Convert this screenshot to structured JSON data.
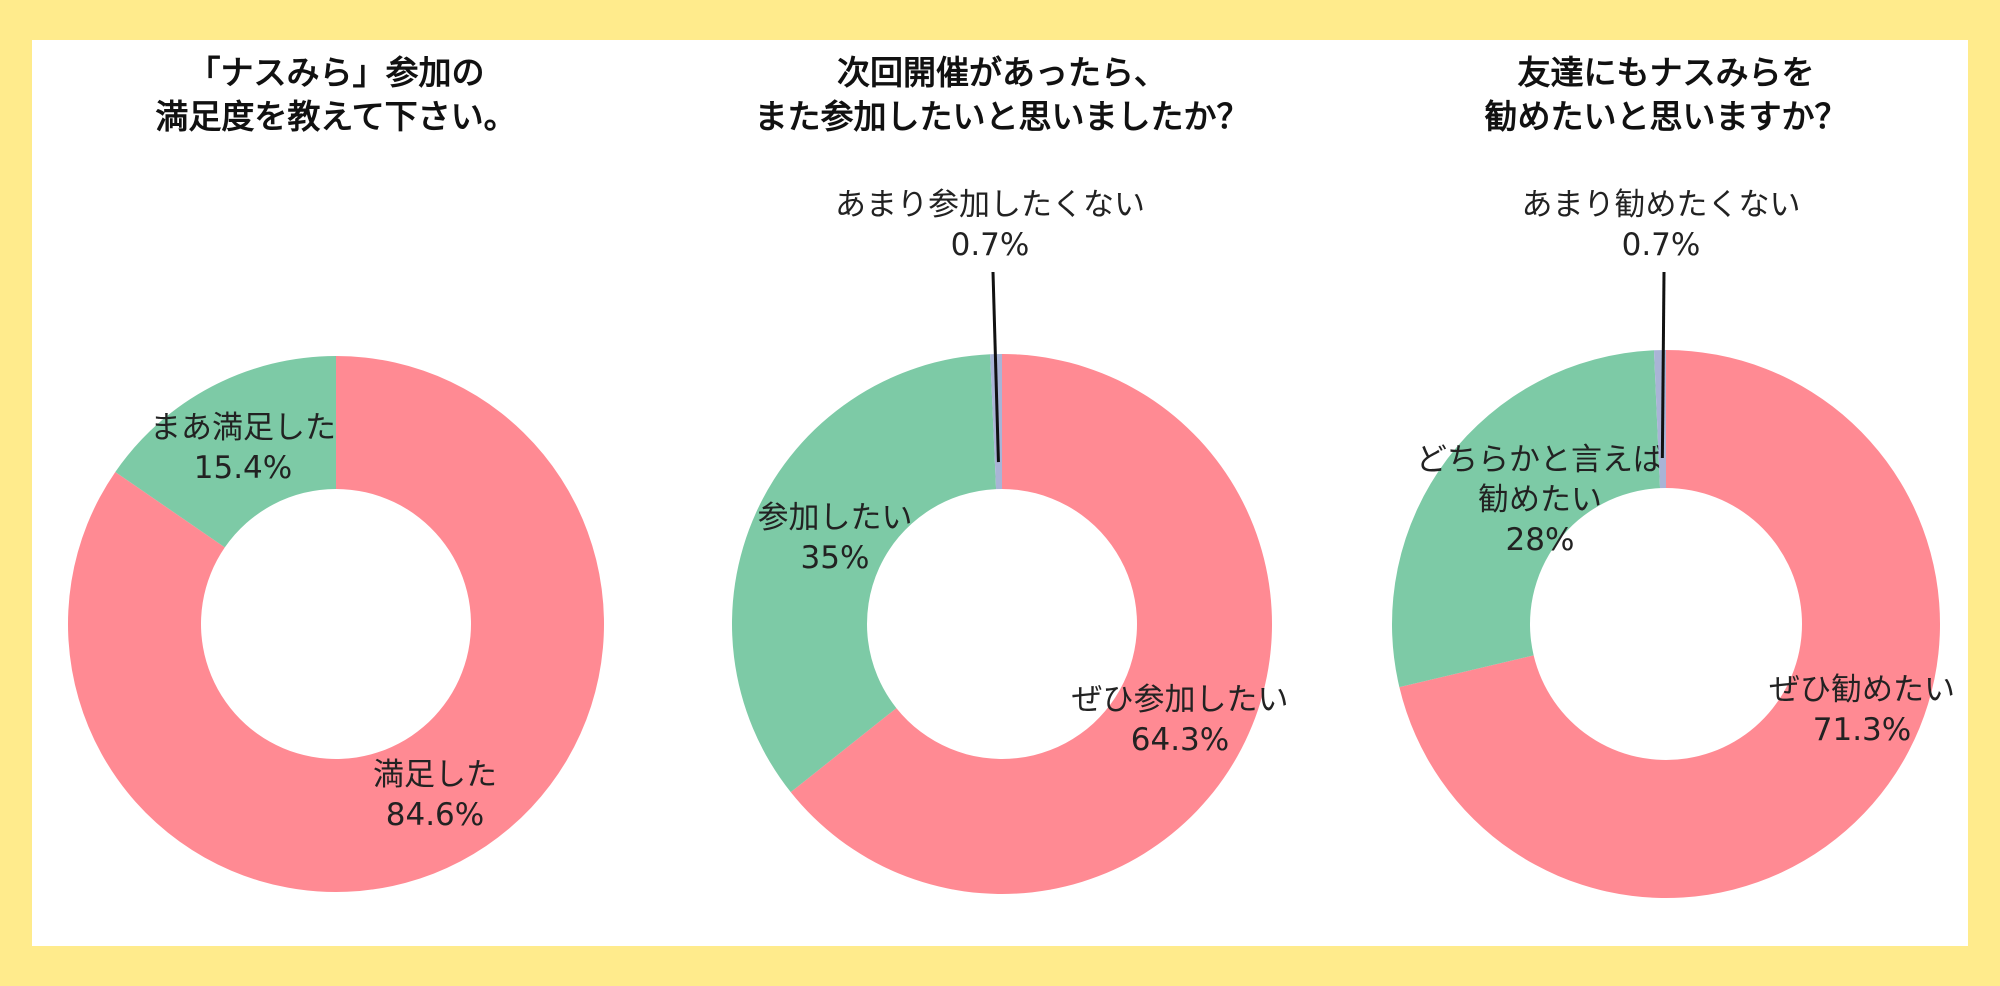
{
  "colors": {
    "frame": "#FFEB8C",
    "panel": "#FFFFFF",
    "positive": "#FF8A93",
    "neutral": "#7DCAA6",
    "negative": "#A9B4D6",
    "leader": "#111111"
  },
  "chart_data": [
    {
      "type": "pie",
      "variant": "donut",
      "title_lines": [
        "「ナスみら」参加の",
        "満足度を教えて下さい。"
      ],
      "slices": [
        {
          "name_lines": [
            "満足した"
          ],
          "value": 84.6,
          "value_label": "84.6%",
          "color_key": "positive"
        },
        {
          "name_lines": [
            "まあ満足した"
          ],
          "value": 15.4,
          "value_label": "15.4%",
          "color_key": "neutral"
        }
      ]
    },
    {
      "type": "pie",
      "variant": "donut",
      "title_lines": [
        "次回開催があったら、",
        "また参加したいと思いましたか？"
      ],
      "slices": [
        {
          "name_lines": [
            "ぜひ参加したい"
          ],
          "value": 64.3,
          "value_label": "64.3%",
          "color_key": "positive"
        },
        {
          "name_lines": [
            "参加したい"
          ],
          "value": 35,
          "value_label": "35%",
          "color_key": "neutral"
        },
        {
          "name_lines": [
            "あまり参加したくない"
          ],
          "value": 0.7,
          "value_label": "0.7%",
          "color_key": "negative",
          "outside": true
        }
      ]
    },
    {
      "type": "pie",
      "variant": "donut",
      "title_lines": [
        "友達にもナスみらを",
        "勧めたいと思いますか？"
      ],
      "slices": [
        {
          "name_lines": [
            "ぜひ勧めたい"
          ],
          "value": 71.3,
          "value_label": "71.3%",
          "color_key": "positive"
        },
        {
          "name_lines": [
            "どちらかと言えば",
            "勧めたい"
          ],
          "value": 28,
          "value_label": "28%",
          "color_key": "neutral"
        },
        {
          "name_lines": [
            "あまり勧めたくない"
          ],
          "value": 0.7,
          "value_label": "0.7%",
          "color_key": "negative",
          "outside": true
        }
      ]
    }
  ]
}
